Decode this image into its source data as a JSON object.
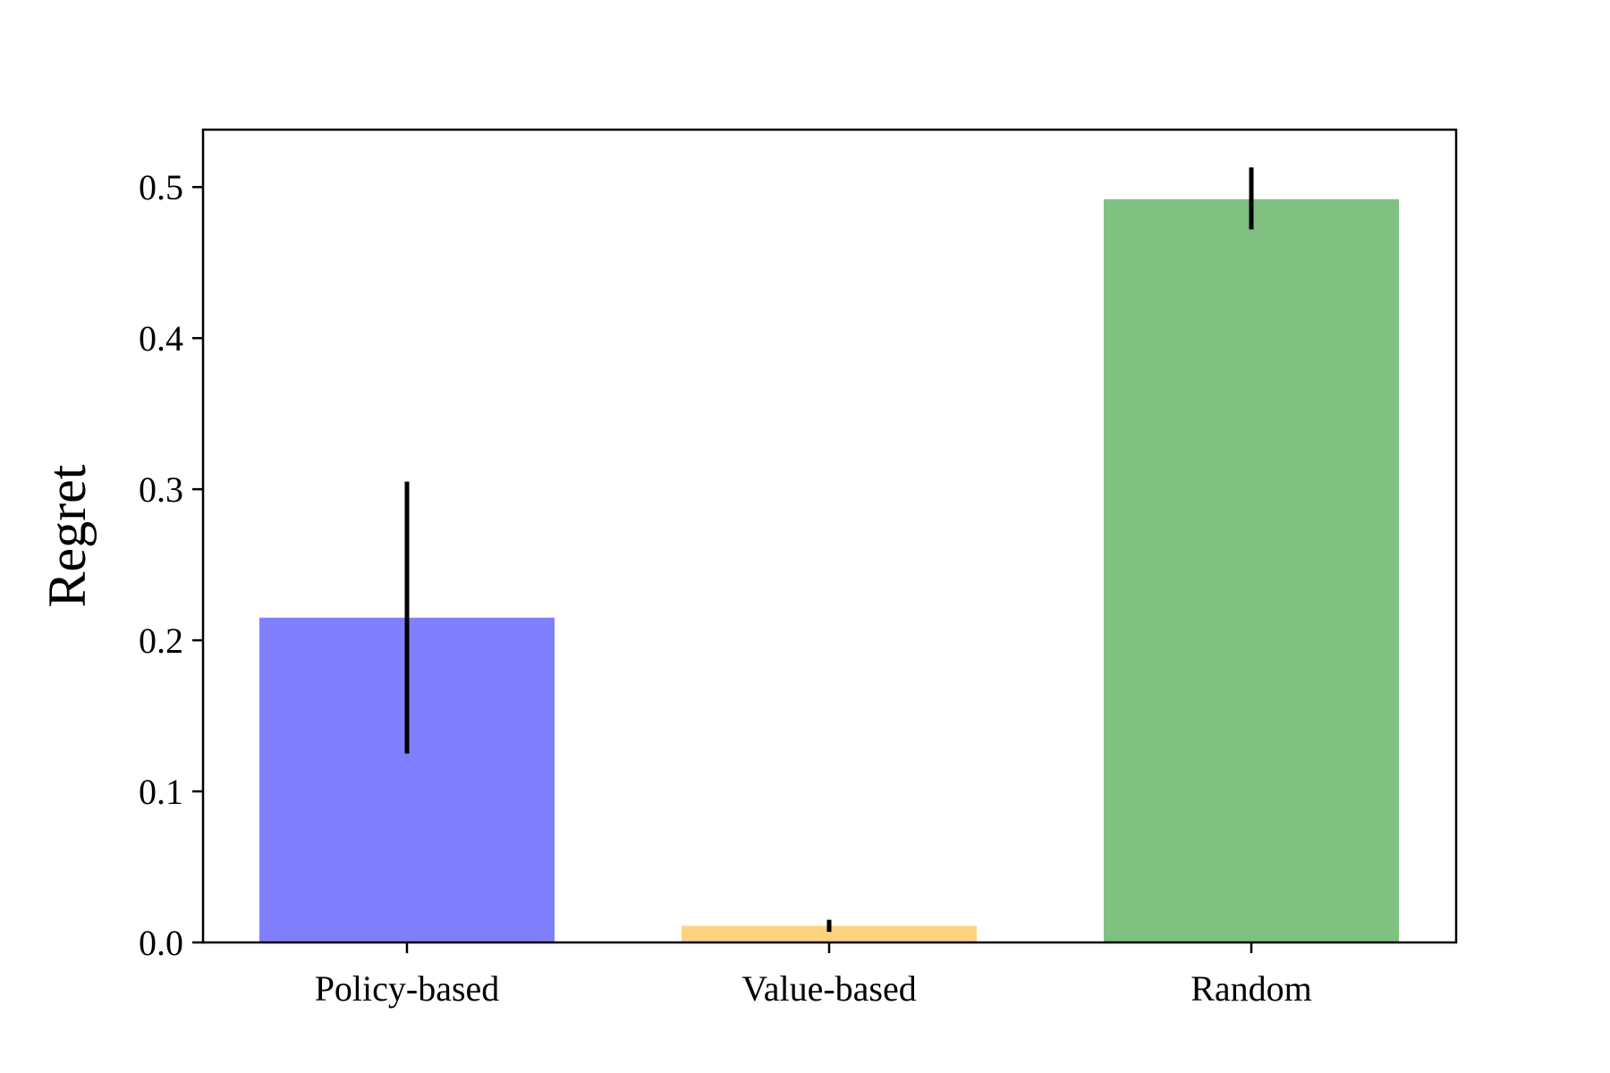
{
  "chart_data": {
    "type": "bar",
    "categories": [
      "Policy-based",
      "Value-based",
      "Random"
    ],
    "values": [
      0.215,
      0.011,
      0.492
    ],
    "error_low": [
      0.125,
      0.007,
      0.472
    ],
    "error_high": [
      0.305,
      0.015,
      0.513
    ],
    "colors": [
      "#8080ff",
      "#ffd280",
      "#80c080"
    ],
    "error_color": "#000000",
    "title": "",
    "xlabel": "",
    "ylabel": "Regret",
    "ylim": [
      0,
      0.538
    ],
    "yticks": [
      0.0,
      0.1,
      0.2,
      0.3,
      0.4,
      0.5
    ],
    "ytick_labels": [
      "0.0",
      "0.1",
      "0.2",
      "0.3",
      "0.4",
      "0.5"
    ],
    "grid": false,
    "legend": "none"
  }
}
